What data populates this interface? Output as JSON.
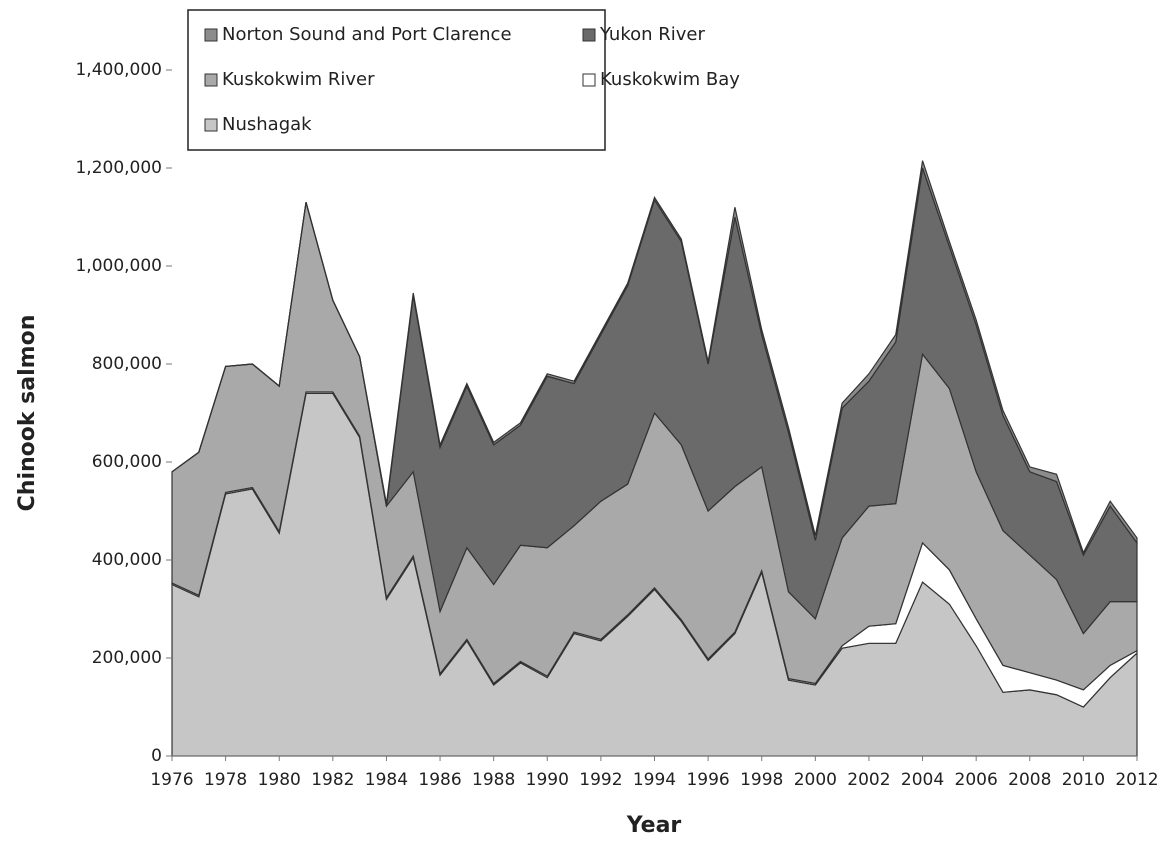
{
  "chart_data": {
    "type": "stacked_area",
    "x_label": "Year",
    "y_label": "Chinook salmon",
    "x": [
      1976,
      1977,
      1978,
      1979,
      1980,
      1981,
      1982,
      1983,
      1984,
      1985,
      1986,
      1987,
      1988,
      1989,
      1990,
      1991,
      1992,
      1993,
      1994,
      1995,
      1996,
      1997,
      1998,
      1999,
      2000,
      2001,
      2002,
      2003,
      2004,
      2005,
      2006,
      2007,
      2008,
      2009,
      2010,
      2011,
      2012
    ],
    "xlim": [
      1976,
      2012
    ],
    "xticks": [
      1976,
      1978,
      1980,
      1982,
      1984,
      1986,
      1988,
      1990,
      1992,
      1994,
      1996,
      1998,
      2000,
      2002,
      2004,
      2006,
      2008,
      2010,
      2012
    ],
    "ylim": [
      0,
      1400000
    ],
    "yticks": [
      0,
      {
        "value": 200000,
        "label": "200,000"
      },
      {
        "value": 400000,
        "label": "400,000"
      },
      {
        "value": 600000,
        "label": "600,000"
      },
      {
        "value": 800000,
        "label": "800,000"
      },
      {
        "value": 1000000,
        "label": "1,000,000"
      },
      {
        "value": 1200000,
        "label": "1,200,000"
      },
      {
        "value": 1400000,
        "label": "1,400,000"
      }
    ],
    "series": [
      {
        "name": "Norton Sound and Port Clarence",
        "color": "#8c8c8c",
        "values": [
          0,
          0,
          0,
          0,
          0,
          0,
          0,
          0,
          5000,
          5000,
          5000,
          5000,
          5000,
          5000,
          5000,
          5000,
          5000,
          5000,
          5000,
          5000,
          5000,
          20000,
          10000,
          10000,
          10000,
          10000,
          15000,
          15000,
          15000,
          10000,
          10000,
          10000,
          10000,
          15000,
          5000,
          10000,
          10000
        ]
      },
      {
        "name": "Yukon River",
        "color": "#6a6a6a",
        "values": [
          0,
          0,
          0,
          0,
          0,
          0,
          0,
          0,
          0,
          360000,
          335000,
          330000,
          285000,
          245000,
          350000,
          290000,
          340000,
          405000,
          435000,
          415000,
          300000,
          550000,
          270000,
          325000,
          160000,
          265000,
          255000,
          330000,
          380000,
          290000,
          300000,
          235000,
          170000,
          200000,
          160000,
          195000,
          120000
        ]
      },
      {
        "name": "Kuskokwim River",
        "color": "#a9a9a9",
        "values": [
          227000,
          292000,
          257000,
          252000,
          297000,
          387000,
          187000,
          162000,
          187000,
          172000,
          127000,
          187000,
          202000,
          237000,
          262000,
          217000,
          282000,
          267000,
          357000,
          357000,
          302000,
          297000,
          212000,
          177000,
          132000,
          220000,
          245000,
          245000,
          385000,
          370000,
          300000,
          275000,
          240000,
          205000,
          115000,
          130000,
          100000
        ]
      },
      {
        "name": "Kuskokwim Bay",
        "color": "#ffffff",
        "values": [
          3000,
          3000,
          3000,
          3000,
          3000,
          3000,
          3000,
          3000,
          3000,
          3000,
          3000,
          3000,
          3000,
          3000,
          3000,
          3000,
          3000,
          3000,
          3000,
          3000,
          3000,
          3000,
          3000,
          3000,
          3000,
          5000,
          35000,
          40000,
          80000,
          70000,
          55000,
          55000,
          35000,
          30000,
          35000,
          25000,
          5000
        ]
      },
      {
        "name": "Nushagak",
        "color": "#c6c6c6",
        "values": [
          350000,
          325000,
          535000,
          545000,
          455000,
          740000,
          740000,
          650000,
          320000,
          405000,
          165000,
          235000,
          145000,
          190000,
          160000,
          250000,
          235000,
          285000,
          340000,
          275000,
          195000,
          250000,
          375000,
          155000,
          145000,
          220000,
          230000,
          230000,
          355000,
          310000,
          225000,
          130000,
          135000,
          125000,
          100000,
          160000,
          210000
        ]
      }
    ]
  }
}
